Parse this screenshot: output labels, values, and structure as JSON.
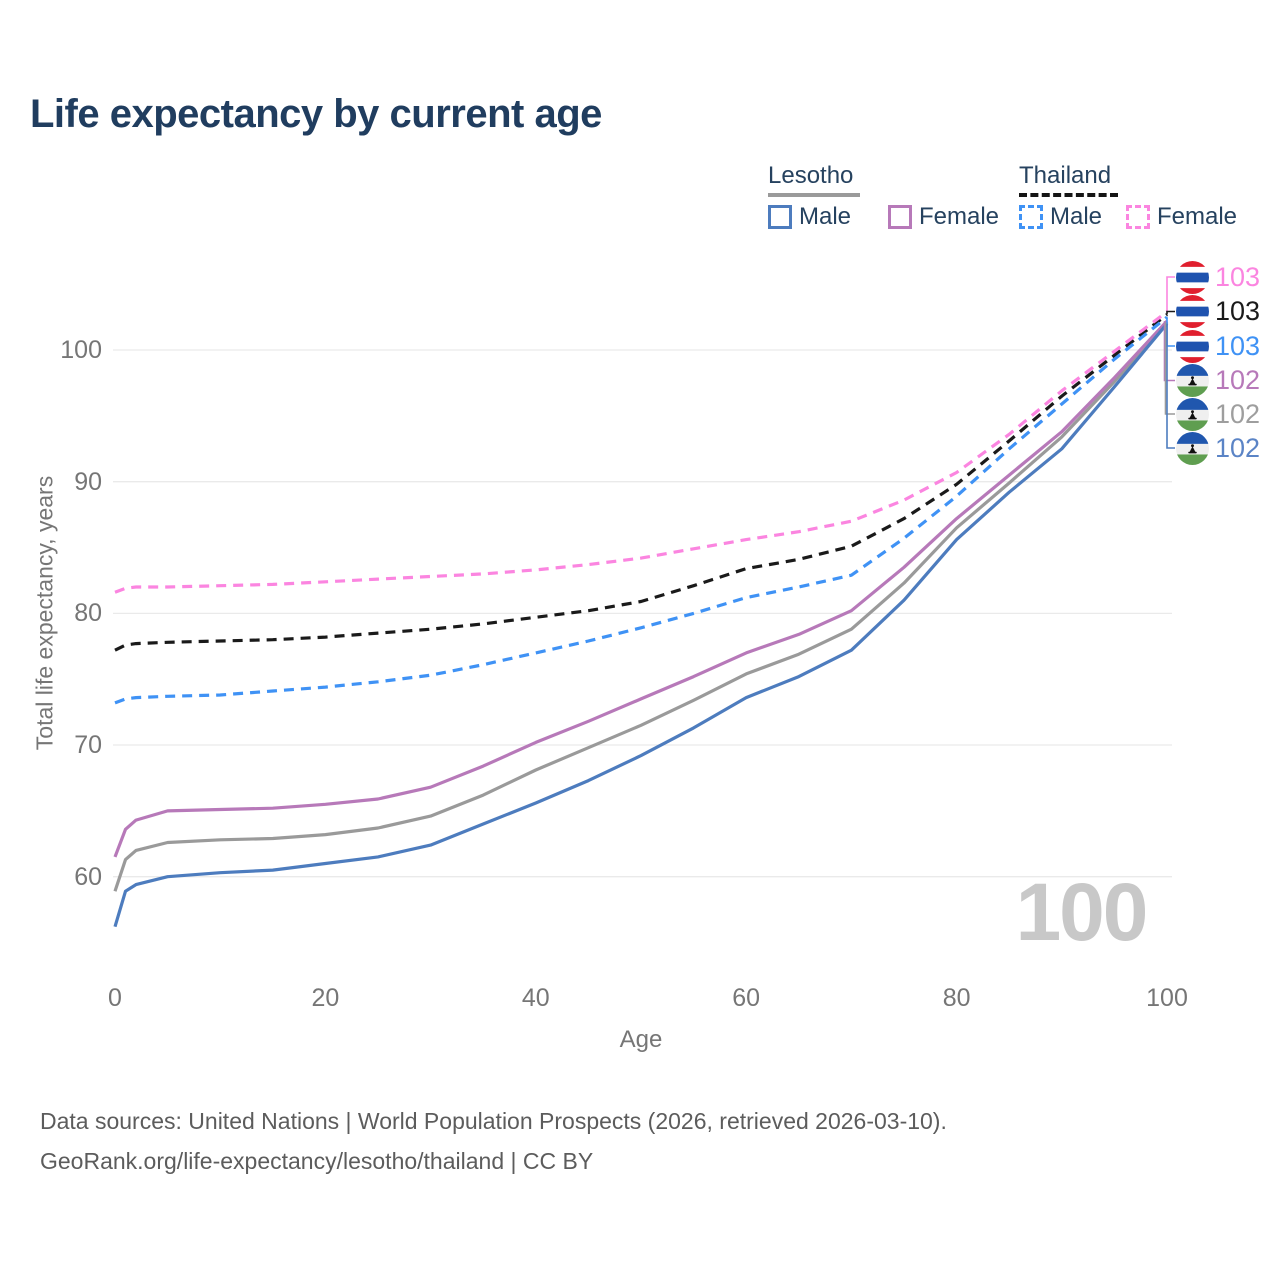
{
  "title": "Life expectancy by current age",
  "legend": {
    "groups": [
      {
        "country": "Lesotho",
        "line_style": "solid",
        "underline_color": "#9a9a9a",
        "items": [
          {
            "label": "Male",
            "color": "#4d7cbe"
          },
          {
            "label": "Female",
            "color": "#b779b9"
          }
        ]
      },
      {
        "country": "Thailand",
        "line_style": "dashed",
        "underline_color": "#151515",
        "items": [
          {
            "label": "Male",
            "color": "#3f92f5"
          },
          {
            "label": "Female",
            "color": "#fb85e0"
          }
        ]
      }
    ]
  },
  "watermark": "100",
  "end_labels": [
    {
      "value": "103",
      "color": "#fb85e0",
      "flag": "thailand",
      "flag_ref": "#flag-thailand",
      "series": "thailand_female"
    },
    {
      "value": "103",
      "color": "#1a1a1a",
      "flag": "thailand",
      "flag_ref": "#flag-thailand",
      "series": "thailand_all"
    },
    {
      "value": "103",
      "color": "#3f92f5",
      "flag": "thailand",
      "flag_ref": "#flag-thailand",
      "series": "thailand_male"
    },
    {
      "value": "102",
      "color": "#b779b9",
      "flag": "lesotho",
      "flag_ref": "#flag-lesotho",
      "series": "lesotho_female"
    },
    {
      "value": "102",
      "color": "#9e9e9e",
      "flag": "lesotho",
      "flag_ref": "#flag-lesotho",
      "series": "lesotho_all"
    },
    {
      "value": "102",
      "color": "#5b84c6",
      "flag": "lesotho",
      "flag_ref": "#flag-lesotho",
      "series": "lesotho_male"
    }
  ],
  "footer": {
    "line1": "Data sources: United Nations | World Population Prospects (2026, retrieved 2026-03-10).",
    "line2": "GeoRank.org/life-expectancy/lesotho/thailand | CC BY"
  },
  "chart_data": {
    "type": "line",
    "title": "Life expectancy by current age",
    "xlabel": "Age",
    "ylabel": "Total life expectancy, years",
    "xlim": [
      0,
      100
    ],
    "ylim": [
      56,
      103
    ],
    "xticks": [
      0,
      20,
      40,
      60,
      80,
      100
    ],
    "yticks": [
      100,
      90,
      80,
      70,
      60
    ],
    "grid": "horizontal",
    "legend_position": "top-right",
    "x": [
      0,
      1,
      2,
      5,
      10,
      15,
      20,
      25,
      30,
      35,
      40,
      45,
      50,
      55,
      60,
      65,
      70,
      75,
      80,
      85,
      90,
      95,
      100
    ],
    "series": [
      {
        "name": "Lesotho Both sexes",
        "key": "lesotho_all",
        "style": "solid",
        "color": "#9a9a9a",
        "values": [
          58.9,
          61.3,
          62.0,
          62.6,
          62.8,
          62.9,
          63.2,
          63.7,
          64.6,
          66.2,
          68.1,
          69.8,
          71.5,
          73.4,
          75.4,
          76.9,
          78.8,
          82.3,
          86.5,
          89.9,
          93.4,
          97.6,
          102.1
        ]
      },
      {
        "name": "Lesotho Female",
        "key": "lesotho_female",
        "style": "solid",
        "color": "#b779b9",
        "values": [
          61.5,
          63.6,
          64.3,
          65.0,
          65.1,
          65.2,
          65.5,
          65.9,
          66.8,
          68.4,
          70.2,
          71.8,
          73.5,
          75.2,
          77.0,
          78.4,
          80.2,
          83.5,
          87.2,
          90.5,
          93.8,
          97.9,
          102.2
        ]
      },
      {
        "name": "Lesotho Male",
        "key": "lesotho_male",
        "style": "solid",
        "color": "#4d7cbe",
        "values": [
          56.2,
          58.9,
          59.4,
          60.0,
          60.3,
          60.5,
          61.0,
          61.5,
          62.4,
          64.0,
          65.6,
          67.3,
          69.2,
          71.3,
          73.6,
          75.2,
          77.2,
          81.0,
          85.6,
          89.2,
          92.5,
          97.2,
          102.0
        ]
      },
      {
        "name": "Thailand Both sexes",
        "key": "thailand_all",
        "style": "dashed",
        "color": "#1a1a1a",
        "values": [
          77.2,
          77.6,
          77.7,
          77.8,
          77.9,
          78.0,
          78.2,
          78.5,
          78.8,
          79.2,
          79.7,
          80.2,
          80.9,
          82.1,
          83.4,
          84.1,
          85.1,
          87.2,
          89.8,
          93.1,
          96.5,
          99.6,
          102.7
        ]
      },
      {
        "name": "Thailand Male",
        "key": "thailand_male",
        "style": "dashed",
        "color": "#3f92f5",
        "values": [
          73.2,
          73.5,
          73.6,
          73.7,
          73.8,
          74.1,
          74.4,
          74.8,
          75.3,
          76.1,
          77.0,
          77.9,
          78.9,
          80.0,
          81.2,
          82.0,
          82.9,
          85.7,
          88.9,
          92.5,
          95.9,
          99.3,
          102.5
        ]
      },
      {
        "name": "Thailand Female",
        "key": "thailand_female",
        "style": "dashed",
        "color": "#fb85e0",
        "values": [
          81.6,
          81.9,
          82.0,
          82.0,
          82.1,
          82.2,
          82.4,
          82.6,
          82.8,
          83.0,
          83.3,
          83.7,
          84.2,
          84.9,
          85.6,
          86.2,
          87.0,
          88.6,
          90.7,
          93.6,
          96.9,
          99.9,
          102.9
        ]
      }
    ]
  }
}
